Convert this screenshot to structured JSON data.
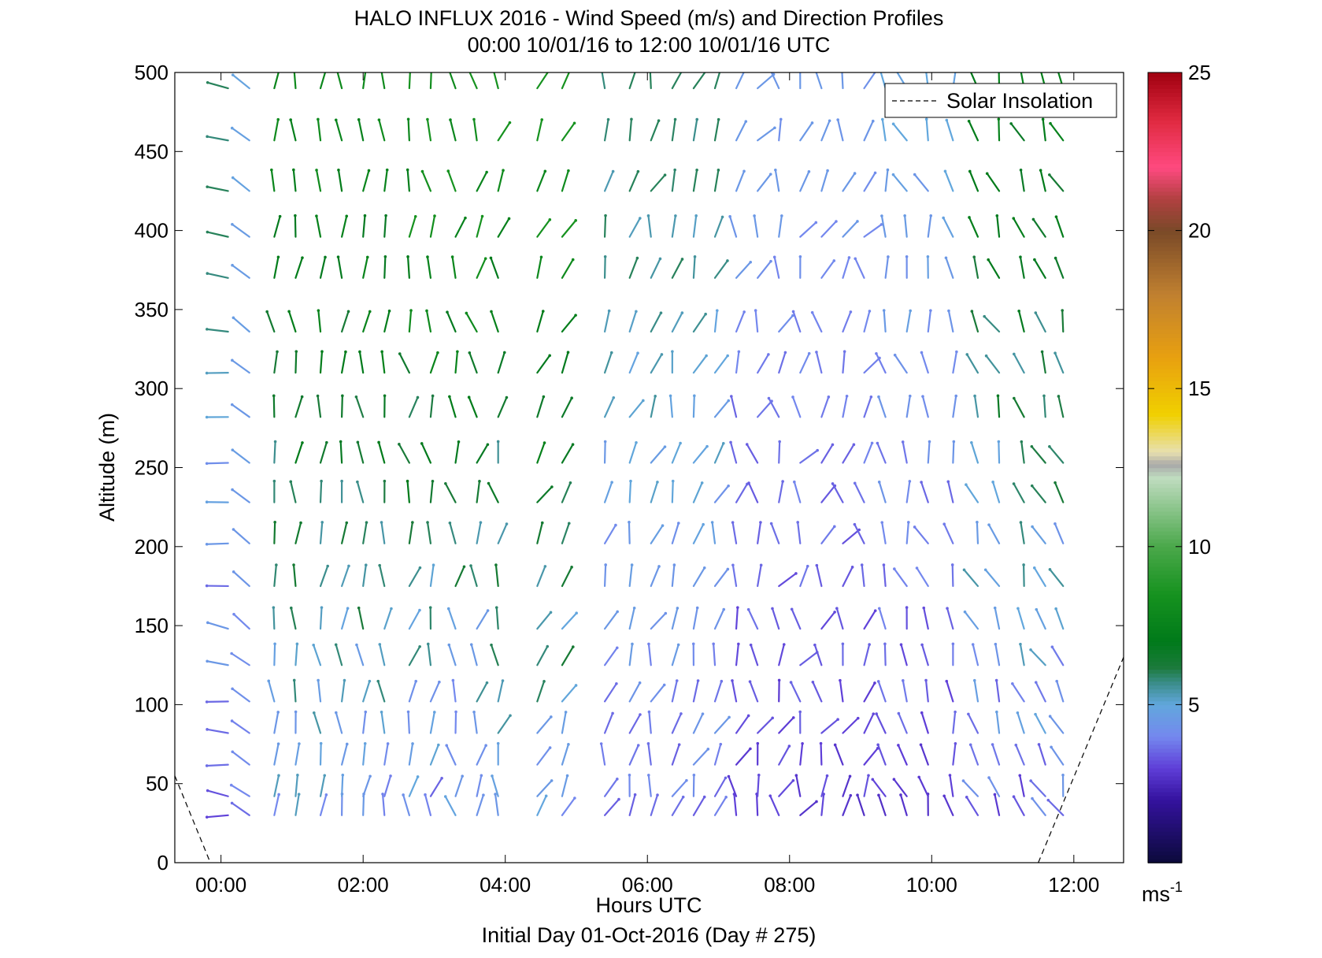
{
  "chart_data": {
    "type": "wind-barb-profile",
    "title": "HALO INFLUX 2016 - Wind Speed (m/s) and Direction Profiles",
    "subtitle": "00:00 10/01/16 to 12:00 10/01/16  UTC",
    "xlabel": "Hours UTC",
    "xlabel2": "Initial Day 01-Oct-2016 (Day # 275)",
    "ylabel": "Altitude (m)",
    "xlim": [
      -0.65,
      12.7
    ],
    "ylim": [
      0,
      500
    ],
    "x_ticks": [
      {
        "value": 0,
        "label": "00:00"
      },
      {
        "value": 2,
        "label": "02:00"
      },
      {
        "value": 4,
        "label": "04:00"
      },
      {
        "value": 6,
        "label": "06:00"
      },
      {
        "value": 8,
        "label": "08:00"
      },
      {
        "value": 10,
        "label": "10:00"
      },
      {
        "value": 12,
        "label": "12:00"
      }
    ],
    "y_ticks": [
      {
        "value": 0,
        "label": "0"
      },
      {
        "value": 50,
        "label": "50"
      },
      {
        "value": 100,
        "label": "100"
      },
      {
        "value": 150,
        "label": "150"
      },
      {
        "value": 200,
        "label": "200"
      },
      {
        "value": 250,
        "label": "250"
      },
      {
        "value": 300,
        "label": "300"
      },
      {
        "value": 350,
        "label": "350"
      },
      {
        "value": 400,
        "label": "400"
      },
      {
        "value": 450,
        "label": "450"
      },
      {
        "value": 500,
        "label": "500"
      }
    ],
    "legend": {
      "position": "top-right",
      "entries": [
        {
          "label": "Solar Insolation",
          "style": "dashed"
        }
      ]
    },
    "colorbar": {
      "min": 0,
      "max": 25,
      "unit_label": "ms",
      "unit_exponent": "-1",
      "ticks": [
        {
          "value": 5,
          "label": "5"
        },
        {
          "value": 10,
          "label": "10"
        },
        {
          "value": 15,
          "label": "15"
        },
        {
          "value": 20,
          "label": "20"
        },
        {
          "value": 25,
          "label": "25"
        }
      ],
      "stops": [
        {
          "v": 0,
          "c": "#0b0a3a"
        },
        {
          "v": 2,
          "c": "#34129e"
        },
        {
          "v": 3,
          "c": "#5f3ed8"
        },
        {
          "v": 4,
          "c": "#7488ee"
        },
        {
          "v": 5,
          "c": "#62a7dd"
        },
        {
          "v": 5.7,
          "c": "#3a8d8a"
        },
        {
          "v": 6.2,
          "c": "#1b7a3a"
        },
        {
          "v": 7,
          "c": "#007a1a"
        },
        {
          "v": 8.5,
          "c": "#16921f"
        },
        {
          "v": 10,
          "c": "#4aa84a"
        },
        {
          "v": 12.2,
          "c": "#c0dcc0"
        },
        {
          "v": 12.6,
          "c": "#a8a8a8"
        },
        {
          "v": 13,
          "c": "#e8e0b0"
        },
        {
          "v": 14.2,
          "c": "#f0d000"
        },
        {
          "v": 16,
          "c": "#e8a010"
        },
        {
          "v": 18,
          "c": "#c08030"
        },
        {
          "v": 20,
          "c": "#7a4a28"
        },
        {
          "v": 21,
          "c": "#b04040"
        },
        {
          "v": 22,
          "c": "#ff4a80"
        },
        {
          "v": 23.5,
          "c": "#e02a40"
        },
        {
          "v": 25,
          "c": "#a00010"
        }
      ]
    },
    "solar_insolation": [
      {
        "x": [
          -0.65,
          -0.15
        ],
        "y": [
          55,
          0
        ]
      },
      {
        "x": [
          11.5,
          12.7
        ],
        "y": [
          0,
          130
        ]
      }
    ],
    "altitudes": [
      30,
      42,
      62,
      82,
      102,
      125,
      148,
      175,
      202,
      228,
      253,
      282,
      310,
      336,
      370,
      396,
      425,
      457,
      490
    ],
    "times": [
      0.1,
      0.4,
      0.75,
      1.05,
      1.4,
      1.7,
      2.0,
      2.3,
      2.65,
      2.95,
      3.3,
      3.6,
      3.9,
      4.45,
      4.8,
      5.4,
      5.75,
      6.05,
      6.35,
      6.65,
      6.95,
      7.25,
      7.55,
      7.85,
      8.15,
      8.45,
      8.75,
      9.05,
      9.35,
      9.65,
      9.95,
      10.3,
      10.65,
      10.95,
      11.3,
      11.6,
      11.85
    ],
    "profile_bands": [
      {
        "t_max": 0.25,
        "dir": [
          265,
          290
        ],
        "spd": [
          2.5,
          6
        ]
      },
      {
        "t_max": 0.6,
        "dir": [
          300,
          315
        ],
        "spd": [
          3.5,
          5
        ]
      },
      {
        "t_max": 2.4,
        "dir": [
          340,
          20
        ],
        "spd": [
          3.5,
          8
        ]
      },
      {
        "t_max": 4.0,
        "dir": [
          330,
          35
        ],
        "spd": [
          3,
          8.5
        ]
      },
      {
        "t_max": 5.2,
        "dir": [
          10,
          45
        ],
        "spd": [
          3.5,
          8.5
        ]
      },
      {
        "t_max": 7.0,
        "dir": [
          350,
          45
        ],
        "spd": [
          3,
          6
        ]
      },
      {
        "t_max": 9.2,
        "dir": [
          330,
          55
        ],
        "spd": [
          2.5,
          4.5
        ]
      },
      {
        "t_max": 10.6,
        "dir": [
          320,
          10
        ],
        "spd": [
          2.5,
          5
        ]
      },
      {
        "t_max": 12.0,
        "dir": [
          315,
          0
        ],
        "spd": [
          2.5,
          7.5
        ]
      }
    ]
  }
}
